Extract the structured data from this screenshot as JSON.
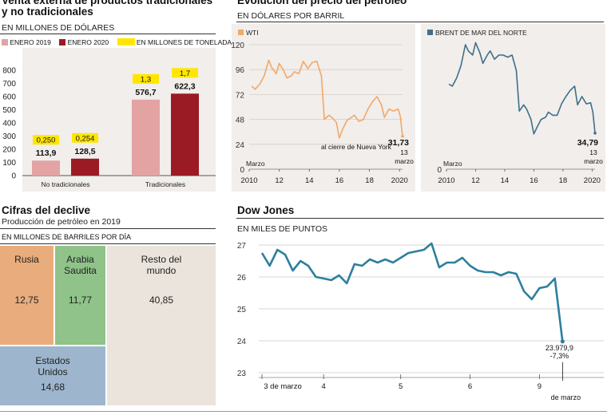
{
  "trade": {
    "title_line1": "Venta externa de productos tradicionales",
    "title_line2": "y no tradicionales",
    "unit": "EN MILLONES DE DÓLARES",
    "legend": [
      {
        "label": "ENERO 2019",
        "color": "#e3a3a3"
      },
      {
        "label": "ENERO 2020",
        "color": "#9b1b24"
      },
      {
        "label": "EN MILLONES DE TONELADAS",
        "color": "#ffe600"
      }
    ]
  },
  "oil": {
    "title": "Evolución del precio del petróleo",
    "unit": "EN DÓLARES POR BARRIL",
    "wti_label": "WTI",
    "brent_label": "BRENT DE MAR DEL NORTE",
    "wti_color": "#f2a868",
    "brent_color": "#3f6f8c",
    "wti_note": "al cierre de Nueva York",
    "wti_last": "31,73",
    "wti_date_day": "13",
    "wti_date_month": "marzo",
    "brent_last": "34,79",
    "brent_date_day": "13",
    "brent_date_month": "marzo",
    "start_label": "Marzo"
  },
  "decline": {
    "title": "Cifras del declive",
    "subtitle": "Producción de petróleo en 2019",
    "unit": "EN MILLONES DE BARRILES POR DÍA",
    "cells": [
      {
        "name": "Rusia",
        "value": "12,75",
        "color": "#e9ac7c"
      },
      {
        "name": "Arabia Saudita",
        "value": "11,77",
        "color": "#8fc389"
      },
      {
        "name": "Resto del mundo",
        "value": "40,85",
        "color": "#ebe4dd"
      },
      {
        "name": "Estados Unidos",
        "value": "14,68",
        "color": "#9db6cd"
      }
    ]
  },
  "dow": {
    "title": "Dow Jones",
    "unit": "EN MILES DE PUNTOS",
    "last_value": "23.979,9",
    "last_change": "-7,3%",
    "end_date": "de marzo",
    "color": "#2d7f9e"
  },
  "chart_data": [
    {
      "type": "bar",
      "title": "Venta externa de productos tradicionales y no tradicionales",
      "ylabel": "EN MILLONES DE DÓLARES",
      "categories": [
        "No tradicionales",
        "Tradicionales"
      ],
      "series": [
        {
          "name": "ENERO 2019",
          "values": [
            113.9,
            576.7
          ],
          "labels": [
            "113,9",
            "576,7"
          ],
          "tonnes": [
            "0,250",
            "1,3"
          ]
        },
        {
          "name": "ENERO 2020",
          "values": [
            128.5,
            622.3
          ],
          "labels": [
            "128,5",
            "622,3"
          ],
          "tonnes": [
            "0,254",
            "1,7"
          ]
        }
      ],
      "ylim": [
        0,
        800
      ],
      "yticks": [
        0,
        100,
        200,
        300,
        400,
        500,
        600,
        700,
        800
      ],
      "grid": false
    },
    {
      "type": "line",
      "title": "WTI",
      "x_range": [
        2010,
        2020.2
      ],
      "xticks": [
        2010,
        2012,
        2014,
        2016,
        2018,
        2020
      ],
      "xtick_labels": [
        "2010",
        "12",
        "14",
        "16",
        "18",
        "2020"
      ],
      "ylim": [
        0,
        120
      ],
      "yticks": [
        0,
        24,
        48,
        72,
        96,
        120
      ],
      "x": [
        2010.17,
        2010.4,
        2010.7,
        2011.0,
        2011.3,
        2011.5,
        2011.8,
        2012.0,
        2012.3,
        2012.5,
        2012.8,
        2013.0,
        2013.3,
        2013.6,
        2013.9,
        2014.2,
        2014.5,
        2014.8,
        2015.0,
        2015.3,
        2015.5,
        2015.8,
        2016.0,
        2016.2,
        2016.5,
        2016.8,
        2017.0,
        2017.3,
        2017.6,
        2017.9,
        2018.2,
        2018.5,
        2018.8,
        2019.0,
        2019.3,
        2019.6,
        2019.9,
        2020.05,
        2020.2
      ],
      "values": [
        80,
        77,
        82,
        90,
        105,
        98,
        92,
        102,
        95,
        88,
        90,
        94,
        92,
        104,
        97,
        103,
        104,
        90,
        48,
        52,
        50,
        45,
        30,
        38,
        47,
        50,
        52,
        46,
        48,
        58,
        65,
        70,
        62,
        50,
        58,
        56,
        58,
        51,
        31.73
      ]
    },
    {
      "type": "line",
      "title": "BRENT DE MAR DEL NORTE",
      "x_range": [
        2010,
        2020.2
      ],
      "xticks": [
        2010,
        2012,
        2014,
        2016,
        2018,
        2020
      ],
      "xtick_labels": [
        "2010",
        "12",
        "14",
        "16",
        "18",
        "2020"
      ],
      "ylim": [
        0,
        120
      ],
      "yticks": [
        0
      ],
      "x": [
        2010.17,
        2010.4,
        2010.7,
        2011.0,
        2011.3,
        2011.5,
        2011.8,
        2012.0,
        2012.3,
        2012.5,
        2012.8,
        2013.0,
        2013.3,
        2013.6,
        2013.9,
        2014.2,
        2014.5,
        2014.8,
        2015.0,
        2015.3,
        2015.5,
        2015.8,
        2016.0,
        2016.2,
        2016.5,
        2016.8,
        2017.0,
        2017.3,
        2017.6,
        2017.9,
        2018.2,
        2018.5,
        2018.8,
        2019.0,
        2019.3,
        2019.6,
        2019.9,
        2020.05,
        2020.2
      ],
      "values": [
        82,
        80,
        88,
        100,
        120,
        114,
        110,
        122,
        112,
        102,
        110,
        114,
        106,
        110,
        110,
        108,
        110,
        95,
        56,
        62,
        58,
        48,
        34,
        40,
        48,
        50,
        55,
        52,
        52,
        63,
        70,
        76,
        80,
        62,
        70,
        63,
        64,
        55,
        34.79
      ]
    },
    {
      "type": "line",
      "title": "Dow Jones",
      "ylabel": "EN MILES DE PUNTOS",
      "ylim": [
        23,
        27
      ],
      "yticks": [
        23,
        24,
        25,
        26,
        27
      ],
      "x_range": [
        0,
        40
      ],
      "xticks": [
        0,
        8,
        18,
        27,
        36
      ],
      "xtick_labels": [
        "3 de marzo",
        "4",
        "5",
        "6",
        "9"
      ],
      "x": [
        0,
        1,
        2,
        3,
        4,
        5,
        6,
        7,
        8,
        9,
        10,
        11,
        12,
        13,
        14,
        15,
        16,
        17,
        18,
        19,
        20,
        21,
        22,
        23,
        24,
        25,
        26,
        27,
        28,
        29,
        30,
        31,
        32,
        33,
        34,
        35,
        36,
        37,
        38,
        39
      ],
      "values": [
        26.75,
        26.35,
        26.85,
        26.7,
        26.2,
        26.5,
        26.35,
        26.0,
        25.95,
        25.9,
        26.05,
        25.8,
        26.4,
        26.35,
        26.55,
        26.45,
        26.55,
        26.45,
        26.6,
        26.75,
        26.8,
        26.85,
        27.05,
        26.3,
        26.45,
        26.45,
        26.6,
        26.35,
        26.2,
        26.15,
        26.15,
        26.05,
        26.15,
        26.1,
        25.55,
        25.3,
        25.65,
        25.7,
        25.95,
        23.98
      ]
    }
  ]
}
